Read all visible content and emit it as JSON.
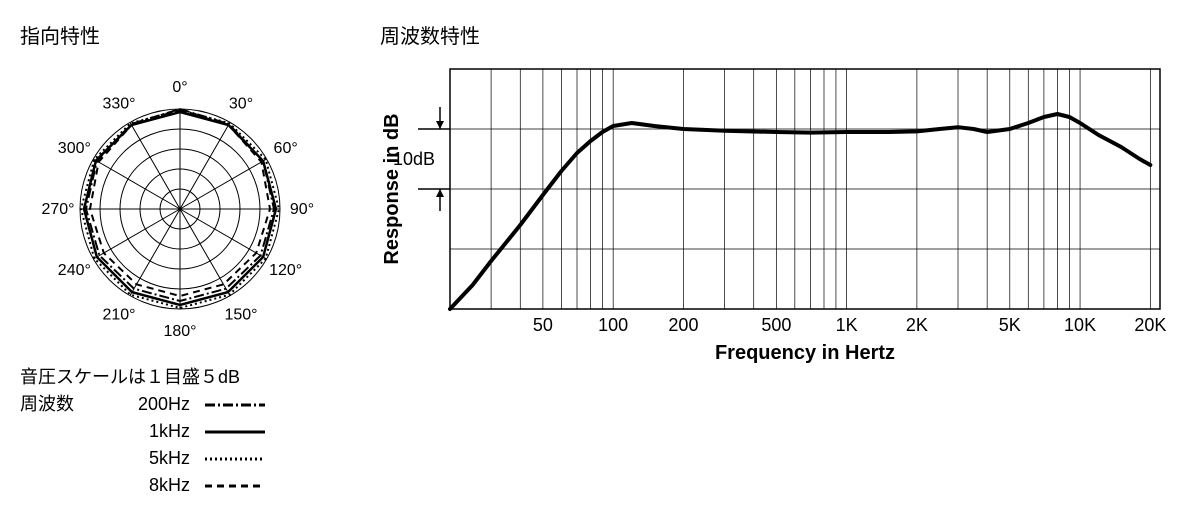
{
  "titles": {
    "polar": "指向特性",
    "freq": "周波数特性"
  },
  "polar": {
    "angles": [
      "0°",
      "30°",
      "60°",
      "90°",
      "120°",
      "150°",
      "180°",
      "210°",
      "240°",
      "270°",
      "300°",
      "330°"
    ],
    "rings": 5,
    "stroke_color": "#000000",
    "grid_stroke": "#000000",
    "grid_width": 1,
    "series": [
      {
        "name": "200Hz",
        "dash": "10 3 2 3",
        "width": 2,
        "values": [
          1.0,
          0.98,
          0.96,
          0.94,
          0.93,
          0.92,
          0.92,
          0.92,
          0.93,
          0.94,
          0.96,
          0.98
        ]
      },
      {
        "name": "1kHz",
        "dash": "none",
        "width": 2.5,
        "values": [
          0.97,
          0.97,
          0.96,
          0.96,
          0.96,
          0.96,
          0.96,
          0.96,
          0.96,
          0.96,
          0.97,
          0.97
        ]
      },
      {
        "name": "5kHz",
        "dash": "2 3",
        "width": 2,
        "values": [
          0.99,
          0.99,
          0.99,
          0.99,
          0.99,
          0.99,
          0.99,
          0.99,
          0.99,
          0.99,
          0.99,
          0.99
        ]
      },
      {
        "name": "8kHz",
        "dash": "7 5",
        "width": 2,
        "values": [
          0.99,
          0.97,
          0.94,
          0.9,
          0.88,
          0.87,
          0.87,
          0.87,
          0.88,
          0.9,
          0.94,
          0.97
        ]
      }
    ],
    "legend_note": "音圧スケールは１目盛５dB",
    "legend_label": "周波数"
  },
  "freq_chart": {
    "y_label": "Response in dB",
    "x_label": "Frequency in Hertz",
    "scale_marker": "10dB",
    "x_ticks": [
      "50",
      "100",
      "200",
      "500",
      "1K",
      "2K",
      "5K",
      "10K",
      "20K"
    ],
    "x_tick_vals": [
      50,
      100,
      200,
      500,
      1000,
      2000,
      5000,
      10000,
      20000
    ],
    "x_min": 20,
    "x_max": 22000,
    "y_min": -30,
    "y_max": 10,
    "grid_color": "#000000",
    "grid_width": 0.7,
    "border_width": 1.5,
    "curve_color": "#000000",
    "curve_width": 4,
    "response": [
      [
        20,
        -30
      ],
      [
        25,
        -26
      ],
      [
        30,
        -22
      ],
      [
        40,
        -16
      ],
      [
        50,
        -11
      ],
      [
        60,
        -7
      ],
      [
        70,
        -4
      ],
      [
        80,
        -2
      ],
      [
        90,
        -0.5
      ],
      [
        100,
        0.5
      ],
      [
        120,
        1
      ],
      [
        150,
        0.5
      ],
      [
        200,
        0
      ],
      [
        300,
        -0.3
      ],
      [
        500,
        -0.5
      ],
      [
        700,
        -0.6
      ],
      [
        1000,
        -0.5
      ],
      [
        1500,
        -0.5
      ],
      [
        2000,
        -0.4
      ],
      [
        2500,
        0
      ],
      [
        3000,
        0.3
      ],
      [
        3500,
        0
      ],
      [
        4000,
        -0.5
      ],
      [
        5000,
        0
      ],
      [
        6000,
        1
      ],
      [
        7000,
        2
      ],
      [
        8000,
        2.5
      ],
      [
        9000,
        2
      ],
      [
        10000,
        1
      ],
      [
        12000,
        -1
      ],
      [
        15000,
        -3
      ],
      [
        18000,
        -5
      ],
      [
        20000,
        -6
      ]
    ],
    "log_gridlines": [
      20,
      30,
      40,
      50,
      60,
      70,
      80,
      90,
      100,
      200,
      300,
      400,
      500,
      600,
      700,
      800,
      900,
      1000,
      2000,
      3000,
      4000,
      5000,
      6000,
      7000,
      8000,
      9000,
      10000,
      20000
    ]
  },
  "colors": {
    "bg": "#ffffff",
    "fg": "#000000"
  }
}
